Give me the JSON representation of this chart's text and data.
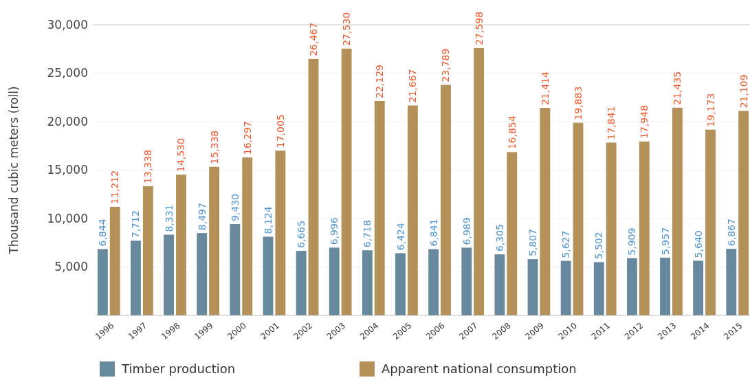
{
  "chart_data": {
    "type": "bar",
    "ylabel": "Thousand cubic meters (roll)",
    "categories": [
      "1996",
      "1997",
      "1998",
      "1999",
      "2000",
      "2001",
      "2002",
      "2003",
      "2004",
      "2005",
      "2006",
      "2007",
      "2008",
      "2009",
      "2010",
      "2011",
      "2012",
      "2013",
      "2014",
      "2015"
    ],
    "series": [
      {
        "name": "Timber production",
        "color": "#66899e",
        "values": [
          6844,
          7712,
          8331,
          8497,
          9430,
          8124,
          6665,
          6996,
          6718,
          6424,
          6841,
          6989,
          6305,
          5807,
          5627,
          5502,
          5909,
          5957,
          5640,
          6867
        ],
        "value_labels": [
          "6,844",
          "7,712",
          "8,331",
          "8,497",
          "9,430",
          "8,124",
          "6,665",
          "6,996",
          "6,718",
          "6,424",
          "6,841",
          "6,989",
          "6,305",
          "5,807",
          "5,627",
          "5,502",
          "5,909",
          "5,957",
          "5,640",
          "6,867"
        ]
      },
      {
        "name": "Apparent national consumption",
        "color": "#b39159",
        "values": [
          11212,
          13338,
          14530,
          15338,
          16297,
          17005,
          26467,
          27530,
          22129,
          21667,
          23789,
          27598,
          16854,
          21414,
          19883,
          17841,
          17948,
          21435,
          19173,
          21109
        ],
        "value_labels": [
          "11,212",
          "13,338",
          "14,530",
          "15,338",
          "16,297",
          "17,005",
          "26,467",
          "27,530",
          "22,129",
          "21,667",
          "23,789",
          "27,598",
          "16,854",
          "21,414",
          "19,883",
          "17,841",
          "17,948",
          "21,435",
          "19,173",
          "21,109"
        ]
      }
    ],
    "ylim": [
      0,
      30000
    ],
    "yticks": [
      {
        "value": 5000,
        "label": "5,000"
      },
      {
        "value": 10000,
        "label": "10,000"
      },
      {
        "value": 15000,
        "label": "15,000"
      },
      {
        "value": 20000,
        "label": "20,000"
      },
      {
        "value": 25000,
        "label": "25,000"
      },
      {
        "value": 30000,
        "label": "30,000"
      }
    ],
    "grid": "y",
    "legend": "bottom"
  }
}
